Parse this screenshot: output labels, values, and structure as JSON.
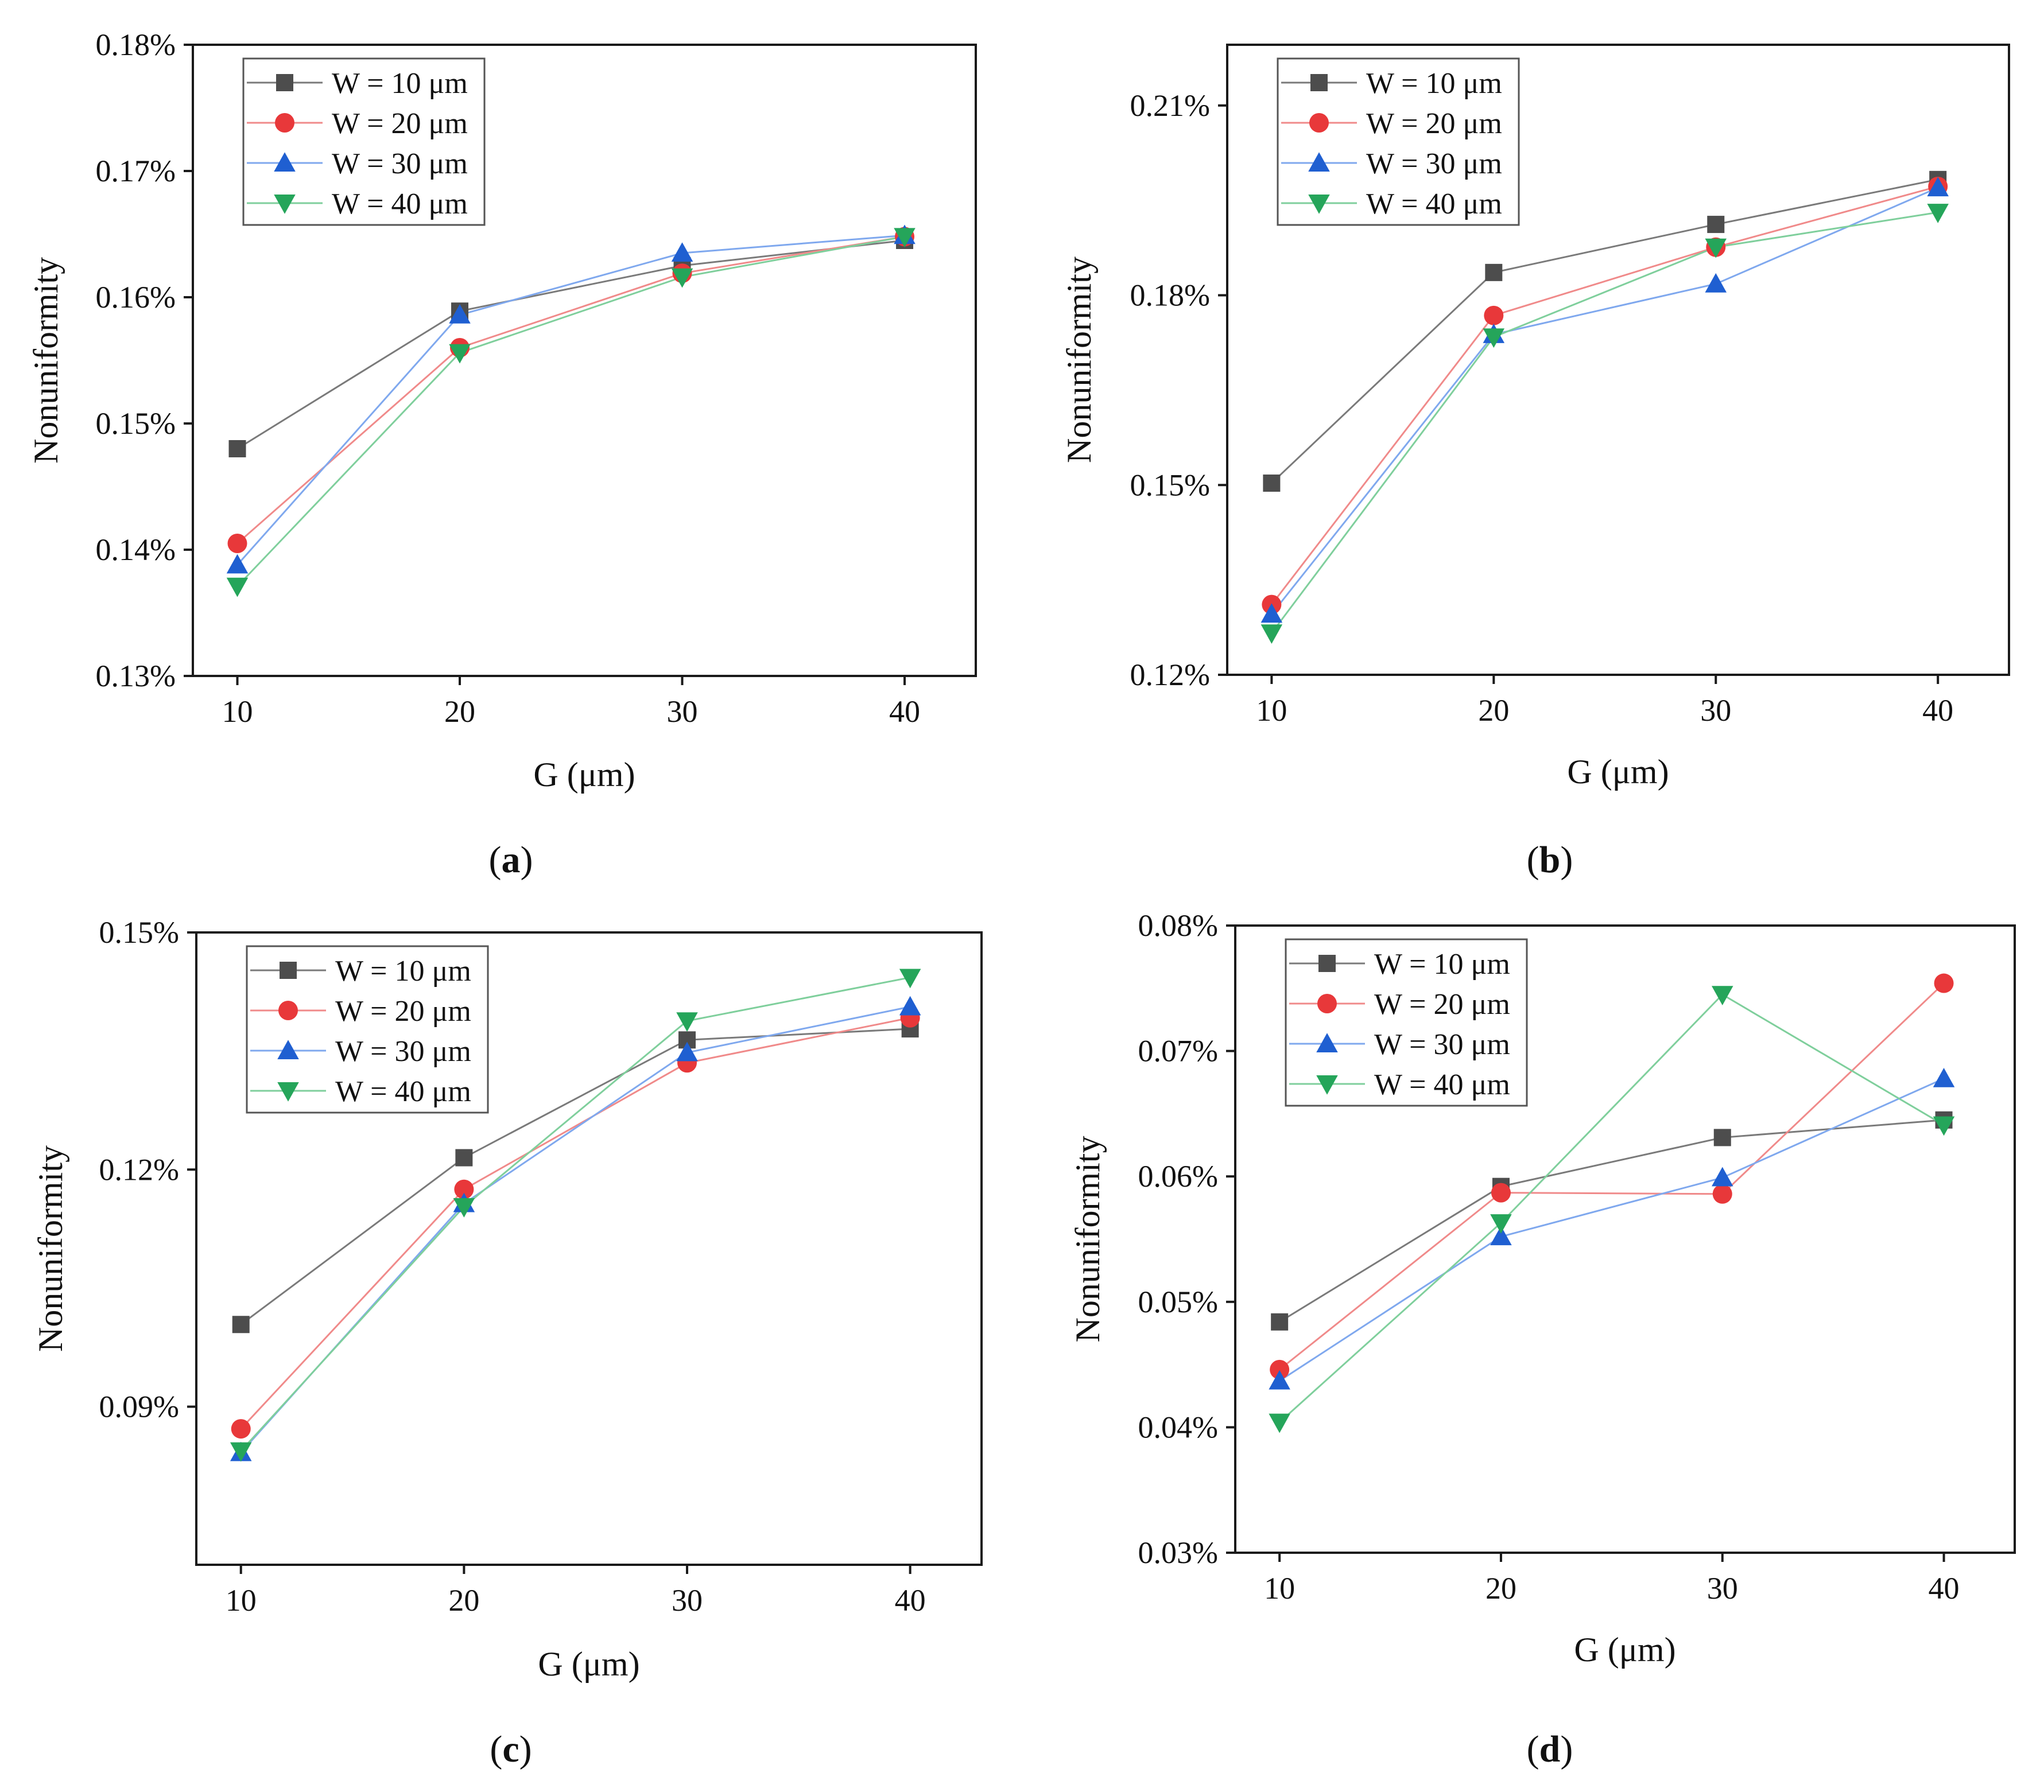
{
  "chart_data": [
    {
      "type": "line",
      "panel_label": "a",
      "xlabel": "G (μm)",
      "ylabel": "Nonuniformity",
      "x": [
        10,
        20,
        30,
        40
      ],
      "x_ticks": [
        "10",
        "20",
        "30",
        "40"
      ],
      "xlim": [
        8,
        43.2
      ],
      "ylim": [
        0.13,
        0.18
      ],
      "y_ticks": [
        "0.13%",
        "0.14%",
        "0.15%",
        "0.16%",
        "0.17%",
        "0.18%"
      ],
      "y_tick_values": [
        0.13,
        0.14,
        0.15,
        0.16,
        0.17,
        0.18
      ],
      "legend_position": "top-left",
      "series": [
        {
          "name": "W = 10 μm",
          "values": [
            0.148,
            0.1589,
            0.1625,
            0.1645
          ]
        },
        {
          "name": "W = 20 μm",
          "values": [
            0.1405,
            0.156,
            0.1619,
            0.1648
          ]
        },
        {
          "name": "W = 30 μm",
          "values": [
            0.1388,
            0.1586,
            0.1635,
            0.1649
          ]
        },
        {
          "name": "W = 40 μm",
          "values": [
            0.1371,
            0.1556,
            0.1616,
            0.1648
          ]
        }
      ]
    },
    {
      "type": "line",
      "panel_label": "b",
      "xlabel": "G (μm)",
      "ylabel": "Nonuniformity",
      "x": [
        10,
        20,
        30,
        40
      ],
      "x_ticks": [
        "10",
        "20",
        "30",
        "40"
      ],
      "xlim": [
        8,
        43.2
      ],
      "ylim": [
        0.12,
        0.2196
      ],
      "y_ticks": [
        "0.12%",
        "0.15%",
        "0.18%",
        "0.21%"
      ],
      "y_tick_values": [
        0.12,
        0.15,
        0.18,
        0.21
      ],
      "legend_position": "top-left",
      "series": [
        {
          "name": "W = 10 μm",
          "values": [
            0.1503,
            0.1836,
            0.1912,
            0.1983
          ]
        },
        {
          "name": "W = 20 μm",
          "values": [
            0.1311,
            0.1768,
            0.1876,
            0.1972
          ]
        },
        {
          "name": "W = 30 μm",
          "values": [
            0.1296,
            0.1738,
            0.1818,
            0.197
          ]
        },
        {
          "name": "W = 40 μm",
          "values": [
            0.1266,
            0.1734,
            0.1876,
            0.1931
          ]
        }
      ]
    },
    {
      "type": "line",
      "panel_label": "c",
      "xlabel": "G (μm)",
      "ylabel": "Nonuniformity",
      "x": [
        10,
        20,
        30,
        40
      ],
      "x_ticks": [
        "10",
        "20",
        "30",
        "40"
      ],
      "xlim": [
        8,
        43.2
      ],
      "ylim": [
        0.07,
        0.15
      ],
      "y_ticks": [
        "0.09%",
        "0.12%",
        "0.15%"
      ],
      "y_tick_values": [
        0.09,
        0.12,
        0.15
      ],
      "legend_position": "top-left",
      "series": [
        {
          "name": "W = 10 μm",
          "values": [
            0.1004,
            0.1215,
            0.1364,
            0.1378
          ]
        },
        {
          "name": "W = 20 μm",
          "values": [
            0.0872,
            0.1175,
            0.1335,
            0.1392
          ]
        },
        {
          "name": "W = 30 μm",
          "values": [
            0.0842,
            0.1157,
            0.1348,
            0.1406
          ]
        },
        {
          "name": "W = 40 μm",
          "values": [
            0.0844,
            0.1153,
            0.1388,
            0.1443
          ]
        }
      ]
    },
    {
      "type": "line",
      "panel_label": "d",
      "xlabel": "G (μm)",
      "ylabel": "Nonuniformity",
      "x": [
        10,
        20,
        30,
        40
      ],
      "x_ticks": [
        "10",
        "20",
        "30",
        "40"
      ],
      "xlim": [
        8,
        43.2
      ],
      "ylim": [
        0.03,
        0.08
      ],
      "y_ticks": [
        "0.03%",
        "0.04%",
        "0.05%",
        "0.06%",
        "0.07%",
        "0.08%"
      ],
      "y_tick_values": [
        0.03,
        0.04,
        0.05,
        0.06,
        0.07,
        0.08
      ],
      "legend_position": "top-left",
      "series": [
        {
          "name": "W = 10 μm",
          "values": [
            0.0484,
            0.0592,
            0.0631,
            0.0645
          ]
        },
        {
          "name": "W = 20 μm",
          "values": [
            0.0446,
            0.0587,
            0.0586,
            0.0754
          ]
        },
        {
          "name": "W = 30 μm",
          "values": [
            0.0437,
            0.0552,
            0.0599,
            0.0678
          ]
        },
        {
          "name": "W = 40 μm",
          "values": [
            0.0404,
            0.0563,
            0.0745,
            0.0641
          ]
        }
      ]
    }
  ],
  "series_styles": [
    {
      "marker": "square",
      "color": "#4d4d4d"
    },
    {
      "marker": "circle",
      "color": "#e8383a"
    },
    {
      "marker": "triangle-up",
      "color": "#1f5fd1"
    },
    {
      "marker": "triangle-down",
      "color": "#25a55a"
    }
  ],
  "line_colors": [
    "#7a7a7a",
    "#f08a8a",
    "#7fa8ee",
    "#7fcf9c"
  ]
}
